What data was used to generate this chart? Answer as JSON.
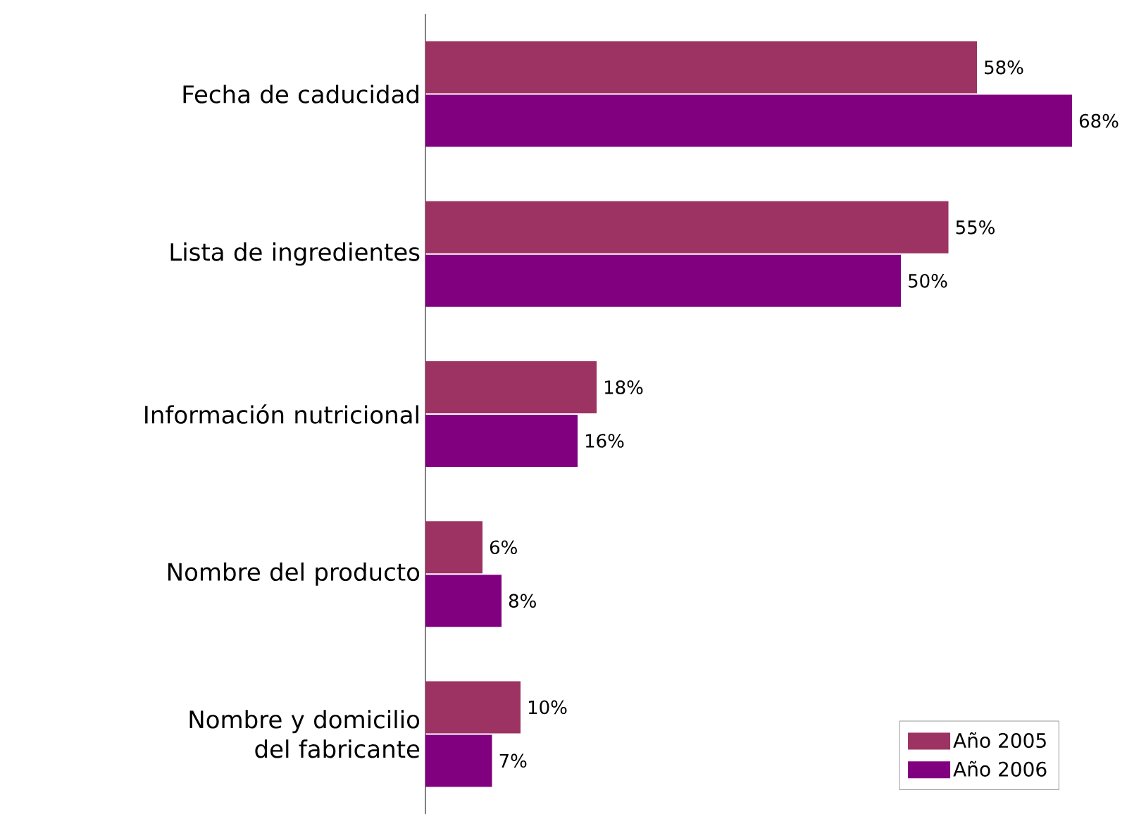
{
  "chart_data": {
    "type": "bar",
    "orientation": "horizontal",
    "categories": [
      "Fecha de caducidad",
      "Lista de ingredientes",
      "Información nutricional",
      "Nombre del producto",
      "Nombre y domicilio del fabricante"
    ],
    "series": [
      {
        "name": "Año 2005",
        "color": "#9c3363",
        "values": [
          58,
          55,
          18,
          6,
          10
        ],
        "value_labels": [
          "58%",
          "55%",
          "18%",
          "6%",
          "10%"
        ]
      },
      {
        "name": "Año 2006",
        "color": "#800080",
        "values": [
          68,
          50,
          16,
          8,
          7
        ],
        "value_labels": [
          "68%",
          "50%",
          "16%",
          "8%",
          "7%"
        ]
      }
    ],
    "tick_labels": "y",
    "legend": "bottom right"
  }
}
